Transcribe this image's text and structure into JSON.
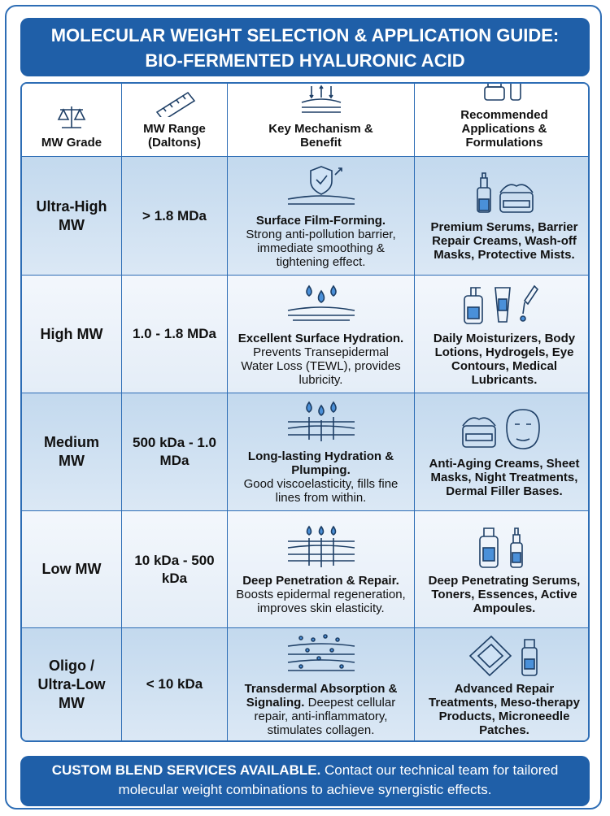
{
  "header": {
    "title_line1": "MOLECULAR WEIGHT SELECTION & APPLICATION GUIDE:",
    "title_line2": "BIO-FERMENTED HYALURONIC ACID"
  },
  "table": {
    "columns": [
      "MW Grade",
      "MW Range (Daltons)",
      "Key Mechanism & Benefit",
      "Recommended Applications & Formulations"
    ],
    "rows": [
      {
        "grade": "Ultra-High MW",
        "range": "> 1.8 MDa",
        "mechanism_title": "Surface Film-Forming.",
        "mechanism_text": "Strong anti-pollution barrier, immediate smoothing & tightening effect.",
        "applications": "Premium Serums, Barrier Repair Creams, Wash-off Masks, Protective Mists."
      },
      {
        "grade": "High MW",
        "range": "1.0 - 1.8 MDa",
        "mechanism_title": "Excellent Surface Hydration.",
        "mechanism_text": "Prevents Transepidermal Water Loss (TEWL), provides lubricity.",
        "applications": "Daily Moisturizers, Body Lotions, Hydrogels, Eye Contours, Medical Lubricants."
      },
      {
        "grade": "Medium MW",
        "range": "500 kDa - 1.0 MDa",
        "mechanism_title": "Long-lasting Hydration & Plumping.",
        "mechanism_text": "Good viscoelasticity, fills fine lines from within.",
        "applications": "Anti-Aging Creams, Sheet Masks, Night Treatments, Dermal Filler Bases."
      },
      {
        "grade": "Low MW",
        "range": "10 kDa - 500 kDa",
        "mechanism_title": "Deep Penetration & Repair.",
        "mechanism_text": "Boosts epidermal regeneration, improves skin elasticity.",
        "applications": "Deep Penetrating Serums, Toners, Essences, Active Ampoules."
      },
      {
        "grade": "Oligo / Ultra-Low MW",
        "range": "< 10 kDa",
        "mechanism_title": "Transdermal Absorption & Signaling.",
        "mechanism_text": "Deepest cellular repair, anti-inflammatory, stimulates collagen.",
        "applications": "Advanced Repair Treatments, Meso-therapy Products, Microneedle Patches."
      }
    ]
  },
  "footer": {
    "bold": "CUSTOM BLEND SERVICES AVAILABLE.",
    "text": "Contact our technical team for tailored molecular weight combinations to achieve synergistic effects."
  }
}
